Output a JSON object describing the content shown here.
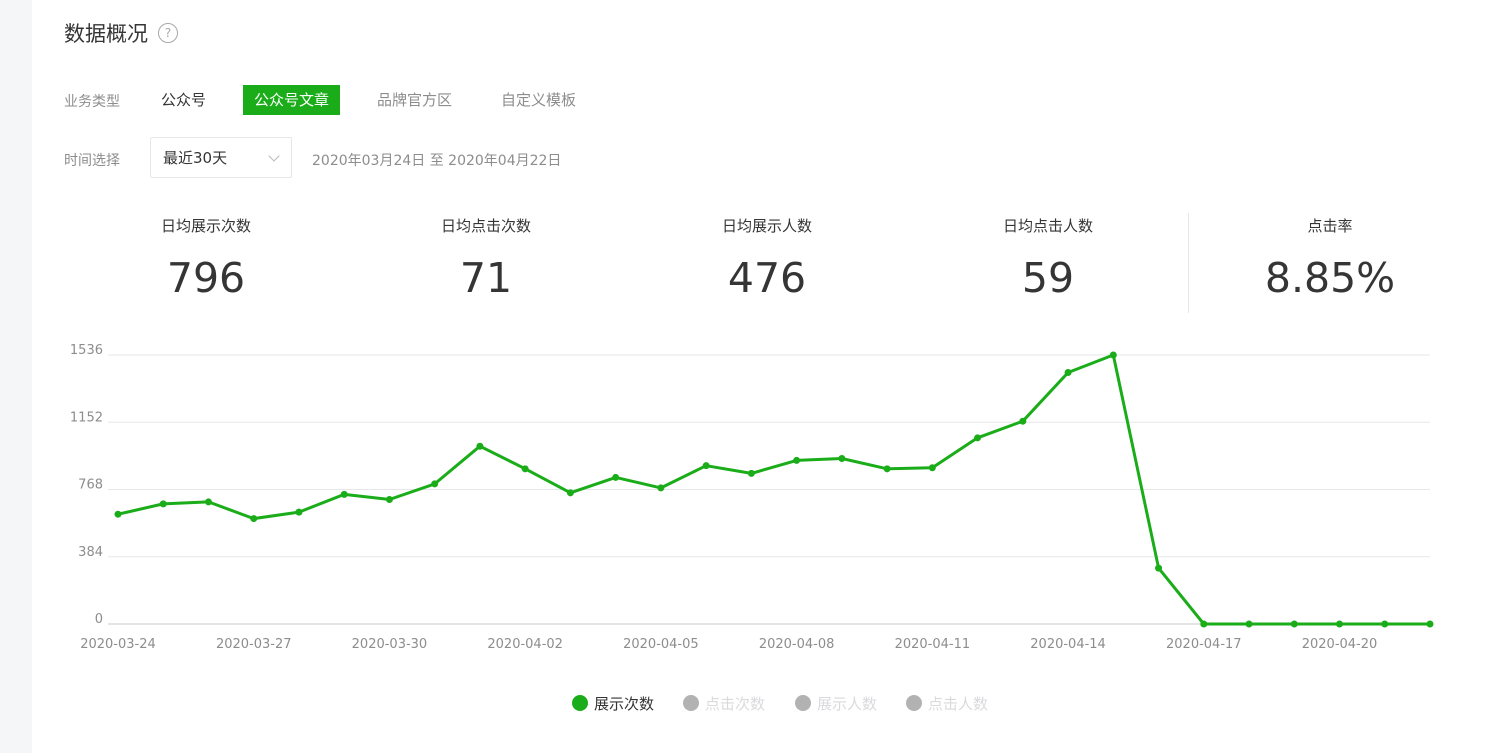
{
  "page": {
    "title": "数据概况",
    "help_icon": "?",
    "business_type_label": "业务类型",
    "business_types": [
      "公众号",
      "公众号文章",
      "品牌官方区",
      "自定义模板"
    ],
    "active_type": "公众号文章",
    "time_label": "时间选择",
    "time_select_value": "最近30天",
    "date_range": "2020年03月24日 至 2020年04月22日"
  },
  "stats": [
    {
      "label": "日均展示次数",
      "value": "796"
    },
    {
      "label": "日均点击次数",
      "value": "71"
    },
    {
      "label": "日均展示人数",
      "value": "476"
    },
    {
      "label": "日均点击人数",
      "value": "59"
    },
    {
      "label": "点击率",
      "value": "8.85%"
    }
  ],
  "legend": [
    {
      "label": "展示次数",
      "active": true,
      "color": "#1aad19"
    },
    {
      "label": "点击次数",
      "active": false,
      "color": "#b2b2b2"
    },
    {
      "label": "展示人数",
      "active": false,
      "color": "#b2b2b2"
    },
    {
      "label": "点击人数",
      "active": false,
      "color": "#b2b2b2"
    }
  ],
  "colors": {
    "accent": "#1aad19",
    "muted": "#8d8d8d",
    "inactive_legend_text": "#d9dadc"
  },
  "chart_data": {
    "type": "line",
    "x": [
      "2020-03-24",
      "2020-03-25",
      "2020-03-26",
      "2020-03-27",
      "2020-03-28",
      "2020-03-29",
      "2020-03-30",
      "2020-03-31",
      "2020-04-01",
      "2020-04-02",
      "2020-04-03",
      "2020-04-04",
      "2020-04-05",
      "2020-04-06",
      "2020-04-07",
      "2020-04-08",
      "2020-04-09",
      "2020-04-10",
      "2020-04-11",
      "2020-04-12",
      "2020-04-13",
      "2020-04-14",
      "2020-04-15",
      "2020-04-16",
      "2020-04-17",
      "2020-04-18",
      "2020-04-19",
      "2020-04-20",
      "2020-04-21",
      "2020-04-22"
    ],
    "x_tick_labels": [
      "2020-03-24",
      "2020-03-27",
      "2020-03-30",
      "2020-04-02",
      "2020-04-05",
      "2020-04-08",
      "2020-04-11",
      "2020-04-14",
      "2020-04-17",
      "2020-04-20"
    ],
    "y_ticks": [
      0,
      384,
      768,
      1152,
      1536
    ],
    "ylim": [
      0,
      1536
    ],
    "grid": true,
    "series": [
      {
        "name": "展示次数",
        "values": [
          627,
          686,
          697,
          602,
          639,
          740,
          711,
          800,
          1015,
          886,
          749,
          837,
          777,
          904,
          860,
          934,
          945,
          886,
          892,
          1063,
          1158,
          1436,
          1536,
          319,
          0,
          0,
          0,
          0,
          0,
          0
        ]
      }
    ]
  }
}
